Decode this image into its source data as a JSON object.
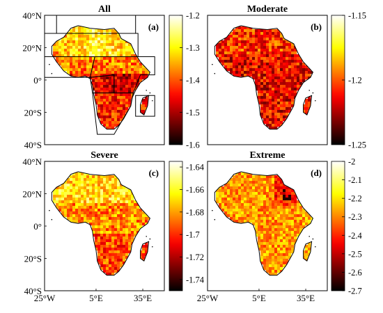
{
  "figure": {
    "colors": {
      "colormap": [
        "#000000",
        "#8b0000",
        "#e31a1c",
        "#ff7f00",
        "#ffff99",
        "#ffffff"
      ],
      "land_outline": "#000000",
      "frame": "#000000"
    },
    "y_ticks": [
      "40°N",
      "20°N",
      "0°",
      "20°S",
      "40°S"
    ],
    "x_ticks": [
      "25°W",
      "5°E",
      "35°E"
    ],
    "panels": [
      {
        "title": "All",
        "label": "(a)",
        "colorbar": {
          "ticks": [
            "-1.2",
            "-1.3",
            "-1.4",
            "-1.5",
            "-1.6"
          ],
          "range": [
            -1.6,
            -1.2
          ]
        },
        "show_regions": true,
        "show_y_ticks": true,
        "show_x_ticks": false
      },
      {
        "title": "Moderate",
        "label": "(b)",
        "colorbar": {
          "ticks": [
            "-1.15",
            "-1.2",
            "-1.25"
          ],
          "range": [
            -1.25,
            -1.15
          ]
        },
        "show_regions": false,
        "show_y_ticks": false,
        "show_x_ticks": false
      },
      {
        "title": "Severe",
        "label": "(c)",
        "colorbar": {
          "ticks": [
            "-1.64",
            "-1.66",
            "-1.68",
            "-1.7",
            "-1.72",
            "-1.74"
          ],
          "range": [
            -1.75,
            -1.635
          ]
        },
        "show_regions": false,
        "show_y_ticks": true,
        "show_x_ticks": true
      },
      {
        "title": "Extreme",
        "label": "(d)",
        "colorbar": {
          "ticks": [
            "-2",
            "-2.1",
            "-2.2",
            "-2.3",
            "-2.4",
            "-2.5",
            "-2.6",
            "-2.7"
          ],
          "range": [
            -2.7,
            -2.0
          ]
        },
        "show_regions": false,
        "show_y_ticks": false,
        "show_x_ticks": true
      }
    ]
  }
}
